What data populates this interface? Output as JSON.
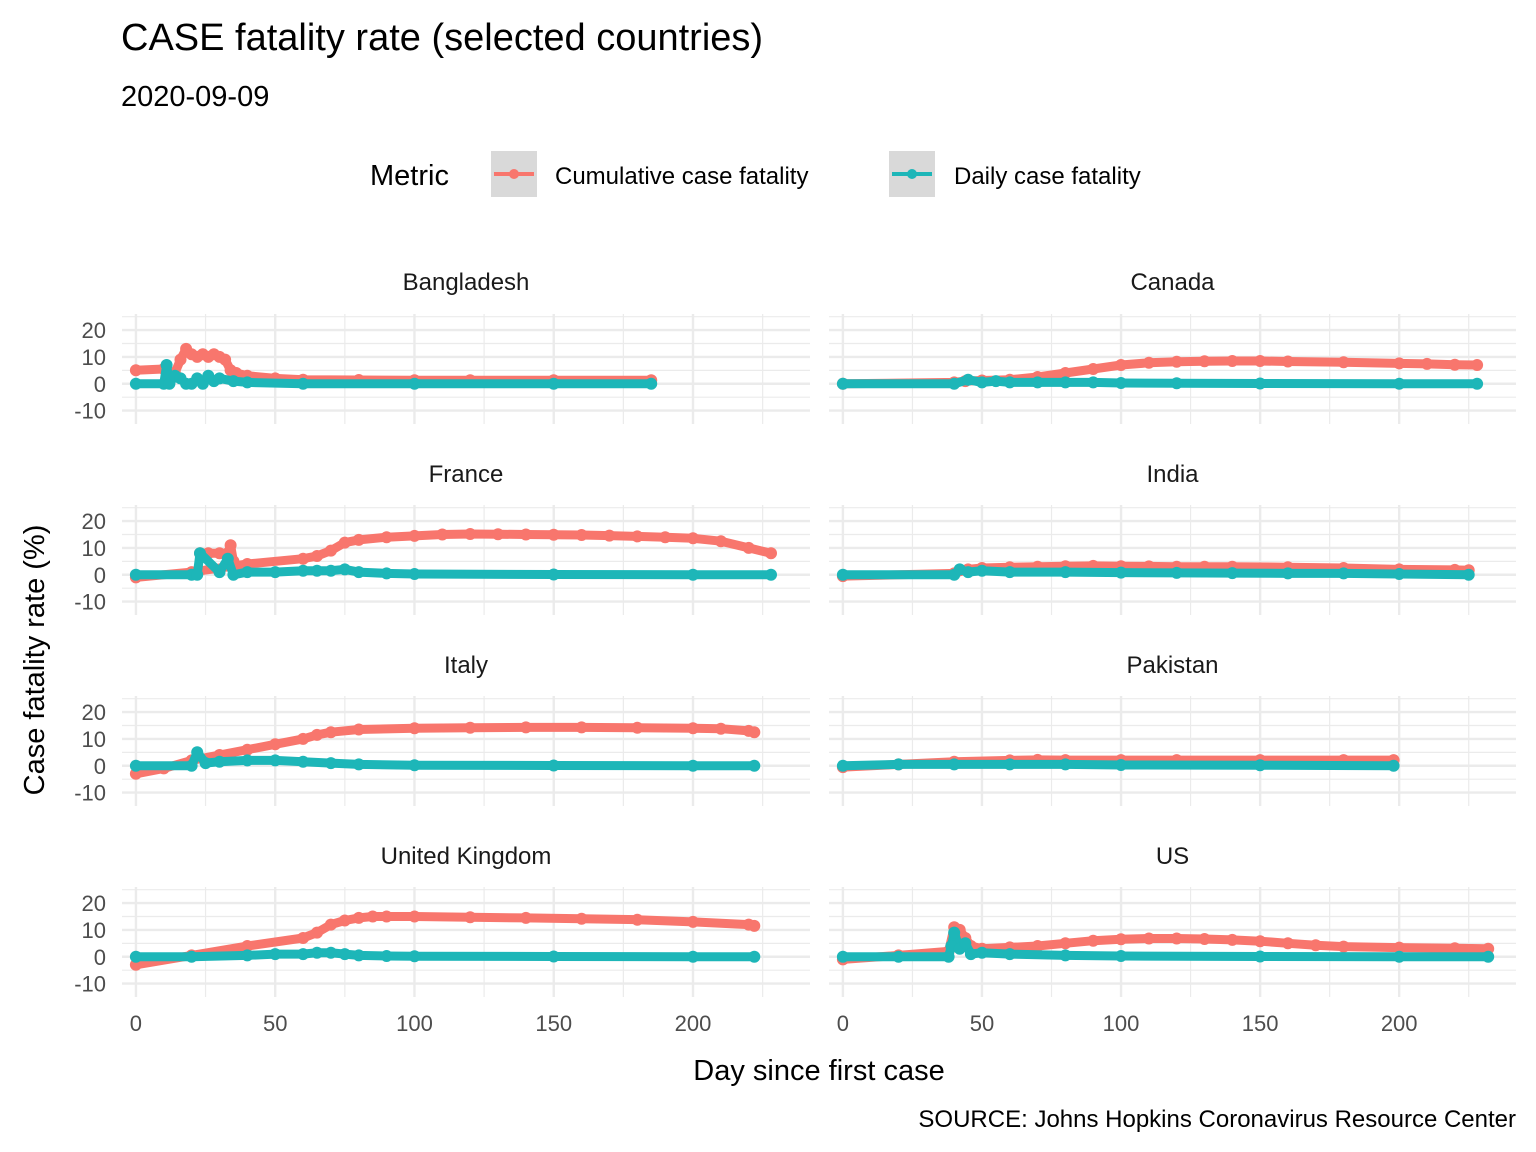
{
  "title": "CASE fatality rate (selected countries)",
  "subtitle": "2020-09-09",
  "caption": "SOURCE: Johns Hopkins Coronavirus Resource Center",
  "legend": {
    "title": "Metric",
    "items": [
      "Cumulative case fatality",
      "Daily case fatality"
    ]
  },
  "colors": {
    "cumulative": "#F8766D",
    "daily": "#1DB6B8",
    "grid": "#EBEBEB"
  },
  "chart_data": {
    "type": "line",
    "facet": true,
    "xlabel": "Day since first case",
    "ylabel": "Case fatality rate (%)",
    "xlim": [
      -5,
      242
    ],
    "ylim": [
      -15,
      26
    ],
    "x_ticks": [
      0,
      50,
      100,
      150,
      200
    ],
    "y_ticks": [
      -10,
      0,
      10,
      20
    ],
    "legend_position": "top",
    "grid": true,
    "panels": [
      {
        "name": "Bangladesh",
        "series": [
          {
            "name": "Cumulative case fatality",
            "x": [
              0,
              10,
              14,
              16,
              18,
              20,
              22,
              24,
              26,
              28,
              30,
              32,
              34,
              36,
              40,
              50,
              60,
              80,
              100,
              120,
              150,
              185
            ],
            "y": [
              5,
              5.5,
              4,
              9,
              13,
              11,
              10,
              11,
              10,
              11,
              10,
              9,
              5,
              4,
              3,
              2,
              1.5,
              1.4,
              1.3,
              1.3,
              1.3,
              1.3
            ]
          },
          {
            "name": "Daily case fatality",
            "x": [
              0,
              10,
              11,
              12,
              14,
              16,
              18,
              20,
              22,
              24,
              26,
              28,
              30,
              35,
              40,
              60,
              100,
              150,
              185
            ],
            "y": [
              0,
              0,
              7,
              0,
              3,
              2,
              0,
              0,
              2,
              0,
              3,
              1,
              2,
              1,
              0.5,
              0,
              0,
              0,
              0
            ]
          }
        ]
      },
      {
        "name": "Canada",
        "series": [
          {
            "name": "Cumulative case fatality",
            "x": [
              0,
              40,
              44,
              50,
              60,
              70,
              80,
              90,
              100,
              110,
              120,
              130,
              140,
              150,
              160,
              180,
              200,
              210,
              220,
              228
            ],
            "y": [
              0,
              0.5,
              1,
              1.2,
              1.5,
              2.5,
              4,
              5.5,
              7,
              7.8,
              8.2,
              8.4,
              8.5,
              8.5,
              8.3,
              8,
              7.6,
              7.4,
              7.1,
              7
            ]
          },
          {
            "name": "Daily case fatality",
            "x": [
              0,
              40,
              45,
              50,
              55,
              60,
              70,
              80,
              90,
              100,
              120,
              150,
              200,
              228
            ],
            "y": [
              0,
              0,
              1.5,
              0.5,
              1,
              0.5,
              0.5,
              0.5,
              0.5,
              0.3,
              0.2,
              0.1,
              0,
              0
            ]
          }
        ]
      },
      {
        "name": "France",
        "series": [
          {
            "name": "Cumulative case fatality",
            "x": [
              0,
              20,
              40,
              60,
              65,
              70,
              75,
              80,
              90,
              100,
              110,
              120,
              130,
              140,
              150,
              160,
              170,
              180,
              190,
              200,
              210,
              220,
              228
            ],
            "y": [
              -1,
              1,
              4,
              6,
              7,
              9,
              12,
              13,
              14,
              14.5,
              15,
              15.2,
              15.1,
              15,
              14.9,
              14.8,
              14.6,
              14.3,
              14,
              13.6,
              12.5,
              10,
              8
            ]
          },
          {
            "name": "Cumulative case fatality",
            "x": [
              23,
              26,
              30,
              33,
              34,
              35
            ],
            "y": [
              8,
              8,
              8,
              8,
              11,
              5
            ]
          },
          {
            "name": "Daily case fatality",
            "x": [
              0,
              20,
              22,
              23,
              30,
              33,
              35,
              40,
              50,
              60,
              65,
              70,
              75,
              80,
              90,
              100,
              150,
              200,
              228
            ],
            "y": [
              0,
              0,
              0,
              8,
              1,
              6,
              0,
              1,
              1,
              1.5,
              1.5,
              1.5,
              2,
              1,
              0.5,
              0.3,
              0.1,
              0,
              0
            ]
          }
        ]
      },
      {
        "name": "India",
        "series": [
          {
            "name": "Cumulative case fatality",
            "x": [
              0,
              40,
              45,
              50,
              60,
              70,
              80,
              90,
              100,
              110,
              120,
              130,
              140,
              160,
              180,
              200,
              220,
              225
            ],
            "y": [
              -0.5,
              0.5,
              2,
              2.5,
              2.8,
              3,
              3.2,
              3.3,
              3.2,
              3.1,
              3,
              3,
              3,
              2.8,
              2.5,
              2,
              1.8,
              1.7
            ]
          },
          {
            "name": "Daily case fatality",
            "x": [
              0,
              40,
              42,
              45,
              50,
              60,
              80,
              100,
              120,
              140,
              160,
              180,
              200,
              225
            ],
            "y": [
              0,
              0,
              2,
              1,
              1.5,
              1,
              1,
              0.8,
              0.7,
              0.6,
              0.5,
              0.5,
              0.3,
              0
            ]
          }
        ]
      },
      {
        "name": "Italy",
        "series": [
          {
            "name": "Cumulative case fatality",
            "x": [
              0,
              10,
              20,
              30,
              40,
              50,
              60,
              65,
              70,
              80,
              100,
              120,
              140,
              160,
              180,
              200,
              210,
              220,
              222
            ],
            "y": [
              -3,
              -1,
              2,
              4,
              6,
              8,
              10,
              11.5,
              12.5,
              13.5,
              14,
              14.2,
              14.3,
              14.3,
              14.2,
              14,
              13.8,
              13,
              12.5
            ]
          },
          {
            "name": "Daily case fatality",
            "x": [
              0,
              20,
              22,
              25,
              30,
              40,
              50,
              60,
              70,
              80,
              100,
              150,
              200,
              222
            ],
            "y": [
              0,
              0,
              5,
              1,
              1.5,
              2,
              2,
              1.5,
              1,
              0.5,
              0.2,
              0.1,
              0,
              0
            ]
          }
        ]
      },
      {
        "name": "Pakistan",
        "series": [
          {
            "name": "Cumulative case fatality",
            "x": [
              0,
              20,
              40,
              60,
              70,
              80,
              100,
              120,
              150,
              180,
              198
            ],
            "y": [
              -0.5,
              0.5,
              1.5,
              2,
              2.2,
              2.1,
              2.1,
              2.1,
              2.1,
              2.1,
              2.1
            ]
          },
          {
            "name": "Daily case fatality",
            "x": [
              0,
              20,
              40,
              60,
              80,
              100,
              150,
              198
            ],
            "y": [
              0,
              0.5,
              0.5,
              0.5,
              0.5,
              0.3,
              0.2,
              0
            ]
          }
        ]
      },
      {
        "name": "United Kingdom",
        "series": [
          {
            "name": "Cumulative case fatality",
            "x": [
              0,
              20,
              40,
              60,
              65,
              70,
              75,
              80,
              85,
              90,
              100,
              120,
              140,
              160,
              180,
              200,
              220,
              222
            ],
            "y": [
              -3,
              0.5,
              4,
              7,
              9,
              12,
              13.5,
              14.5,
              15,
              15,
              15,
              14.7,
              14.5,
              14.2,
              13.8,
              13,
              12,
              11.5
            ]
          },
          {
            "name": "Daily case fatality",
            "x": [
              0,
              20,
              40,
              50,
              60,
              65,
              70,
              75,
              80,
              90,
              100,
              150,
              200,
              222
            ],
            "y": [
              0,
              0,
              0.5,
              1,
              1,
              1.5,
              1.5,
              1,
              0.5,
              0.3,
              0.2,
              0.1,
              0,
              0
            ]
          }
        ]
      },
      {
        "name": "US",
        "series": [
          {
            "name": "Cumulative case fatality",
            "x": [
              0,
              20,
              38,
              40,
              42,
              44,
              46,
              50,
              60,
              70,
              80,
              90,
              100,
              110,
              120,
              130,
              140,
              150,
              160,
              170,
              180,
              200,
              220,
              232
            ],
            "y": [
              -1,
              0.5,
              2,
              11,
              10,
              7,
              4,
              3,
              3.5,
              4,
              5,
              6,
              6.5,
              6.8,
              6.8,
              6.6,
              6.3,
              5.8,
              5,
              4.3,
              3.8,
              3.4,
              3.2,
              3
            ]
          },
          {
            "name": "Daily case fatality",
            "x": [
              0,
              20,
              38,
              39,
              40,
              42,
              44,
              46,
              50,
              60,
              80,
              100,
              150,
              200,
              232
            ],
            "y": [
              0,
              0,
              0,
              4,
              9,
              3,
              5,
              1,
              1.5,
              1,
              0.5,
              0.3,
              0.1,
              0,
              0
            ]
          }
        ]
      }
    ]
  }
}
